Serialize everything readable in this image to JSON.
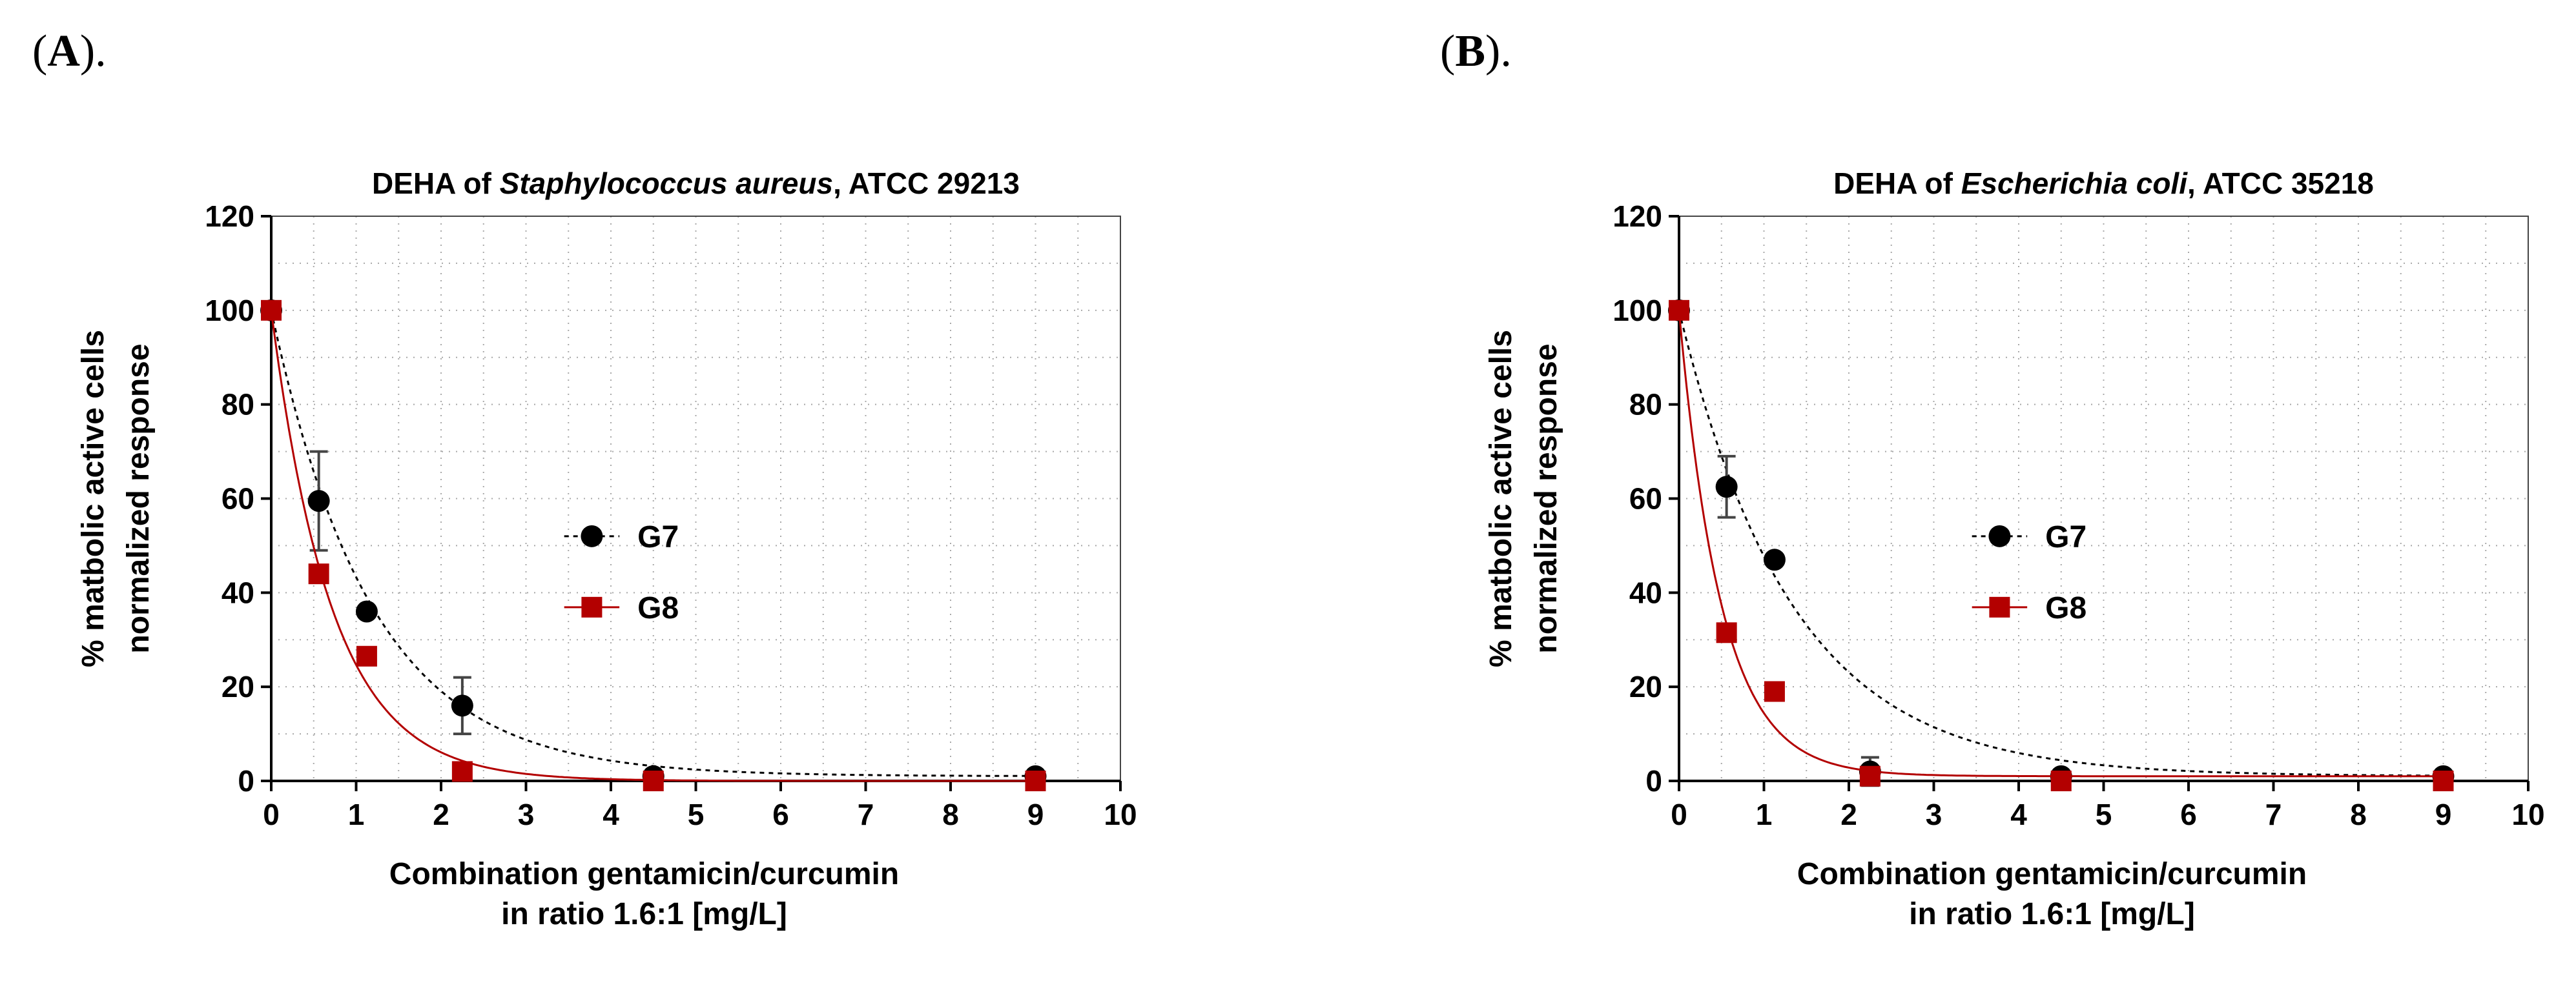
{
  "panels": [
    {
      "label": "A",
      "suffix": ")."
    },
    {
      "label": "B",
      "suffix": ")."
    }
  ],
  "colors": {
    "G7": "#000000",
    "G8": "#b30000",
    "grid": "#a8a8a8"
  },
  "chart_data": [
    {
      "type": "scatter",
      "title_prefix": "DEHA of ",
      "title_italic": "Staphylococcus aureus",
      "title_suffix": ", ATCC 29213",
      "xlabel_line1": "Combination gentamicin/curcumin",
      "xlabel_line2": "in ratio 1.6:1  [mg/L]",
      "ylabel_line1": "% matbolic active cells",
      "ylabel_line2": "normalized response",
      "xlim": [
        0,
        10
      ],
      "ylim": [
        0,
        120
      ],
      "xticks": [
        0,
        1,
        2,
        3,
        4,
        5,
        6,
        7,
        8,
        9,
        10
      ],
      "yticks": [
        0,
        20,
        40,
        60,
        80,
        100,
        120
      ],
      "grid": true,
      "legend_position": "center",
      "series": [
        {
          "name": "G7",
          "marker": "circle",
          "line": "dotted",
          "x": [
            0,
            0.56,
            1.125,
            2.25,
            4.5,
            9
          ],
          "y": [
            100,
            59.5,
            36,
            16,
            1,
            1
          ],
          "err": [
            0,
            10.5,
            0,
            6,
            0,
            0
          ],
          "fit": {
            "y0": 100,
            "plateau": 1,
            "k": 0.85
          }
        },
        {
          "name": "G8",
          "marker": "square",
          "line": "solid",
          "x": [
            0,
            0.56,
            1.125,
            2.25,
            4.5,
            9
          ],
          "y": [
            100,
            44,
            26.5,
            2,
            0,
            0
          ],
          "err": [
            0,
            0,
            0,
            0,
            0,
            0
          ],
          "fit": {
            "y0": 100,
            "plateau": 0,
            "k": 1.4
          }
        }
      ]
    },
    {
      "type": "scatter",
      "title_prefix": "DEHA of ",
      "title_italic": "Escherichia coli",
      "title_suffix": ", ATCC 35218",
      "xlabel_line1": "Combination gentamicin/curcumin",
      "xlabel_line2": "in ratio 1.6:1  [mg/L]",
      "ylabel_line1": "% matbolic active cells",
      "ylabel_line2": "normalized response",
      "xlim": [
        0,
        10
      ],
      "ylim": [
        0,
        120
      ],
      "xticks": [
        0,
        1,
        2,
        3,
        4,
        5,
        6,
        7,
        8,
        9,
        10
      ],
      "yticks": [
        0,
        20,
        40,
        60,
        80,
        100,
        120
      ],
      "grid": true,
      "legend_position": "center",
      "series": [
        {
          "name": "G7",
          "marker": "circle",
          "line": "dotted",
          "x": [
            0,
            0.56,
            1.125,
            2.25,
            4.5,
            9
          ],
          "y": [
            100,
            62.5,
            47,
            2,
            1,
            1
          ],
          "err": [
            0,
            6.5,
            0,
            3,
            0,
            0
          ],
          "fit": {
            "y0": 100,
            "plateau": 1,
            "k": 0.75
          }
        },
        {
          "name": "G8",
          "marker": "square",
          "line": "solid",
          "x": [
            0,
            0.56,
            1.125,
            2.25,
            4.5,
            9
          ],
          "y": [
            100,
            31.5,
            19,
            1,
            0,
            0
          ],
          "err": [
            0,
            0,
            0,
            0,
            0,
            0
          ],
          "fit": {
            "y0": 100,
            "plateau": 1,
            "k": 2.0
          }
        }
      ]
    }
  ]
}
